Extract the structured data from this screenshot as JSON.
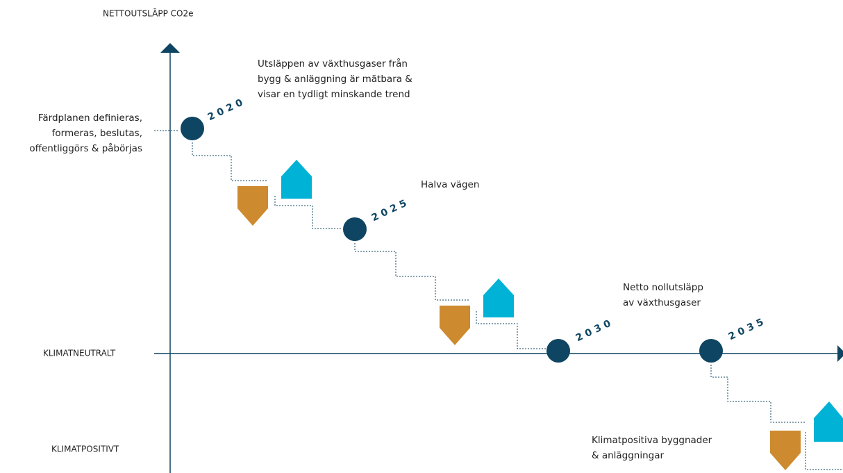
{
  "axis_label": "NETTOUTSLÄPP CO2e",
  "levels": {
    "neutral": "KLIMATNEUTRALT",
    "positive": "KLIMATPOSITIVT"
  },
  "milestones": [
    {
      "year": "2020"
    },
    {
      "year": "2025"
    },
    {
      "year": "2030"
    },
    {
      "year": "2035"
    }
  ],
  "annotations": {
    "start": [
      "Färdplanen definieras,",
      "formeras, beslutas,",
      "offentliggörs & påbörjas"
    ],
    "measurable": [
      "Utsläppen av växthusgaser från",
      "bygg & anläggning är mätbara &",
      "visar en tydligt minskande trend"
    ],
    "halfway": [
      "Halva vägen"
    ],
    "net_zero": [
      "Netto nollutsläpp",
      "av växthusgaser"
    ],
    "positive": [
      "Klimatpositiva byggnader",
      "& anläggningar"
    ]
  }
}
